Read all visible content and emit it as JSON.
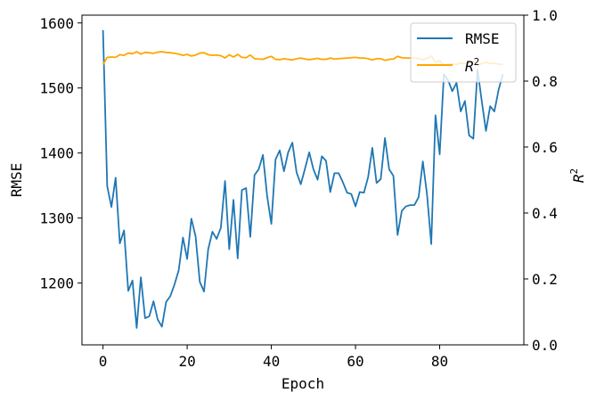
{
  "chart_data": {
    "type": "line",
    "xlabel": "Epoch",
    "ylabel_left": "RMSE",
    "ylabel_right": "R",
    "ylabel_right_sup": "2",
    "xlim": [
      -5,
      100
    ],
    "ylim_left": [
      1105,
      1612
    ],
    "ylim_right": [
      0.0,
      1.0
    ],
    "xticks": [
      "0",
      "20",
      "40",
      "60",
      "80"
    ],
    "xtick_values": [
      0,
      20,
      40,
      60,
      80
    ],
    "yticks_left": [
      "1200",
      "1300",
      "1400",
      "1500",
      "1600"
    ],
    "ytick_values_left": [
      1200,
      1300,
      1400,
      1500,
      1600
    ],
    "yticks_right": [
      "0.0",
      "0.2",
      "0.4",
      "0.6",
      "0.8",
      "1.0"
    ],
    "ytick_values_right": [
      0.0,
      0.2,
      0.4,
      0.6,
      0.8,
      1.0
    ],
    "legend": {
      "position": "top-right",
      "entries": [
        "RMSE",
        "R",
        "2"
      ]
    },
    "series": [
      {
        "name": "RMSE",
        "color": "#1f77b4",
        "axis": "left",
        "x": [
          0,
          1,
          2,
          3,
          4,
          5,
          6,
          7,
          8,
          9,
          10,
          11,
          12,
          13,
          14,
          15,
          16,
          17,
          18,
          19,
          20,
          21,
          22,
          23,
          24,
          25,
          26,
          27,
          28,
          29,
          30,
          31,
          32,
          33,
          34,
          35,
          36,
          37,
          38,
          39,
          40,
          41,
          42,
          43,
          44,
          45,
          46,
          47,
          48,
          49,
          50,
          51,
          52,
          53,
          54,
          55,
          56,
          57,
          58,
          59,
          60,
          61,
          62,
          63,
          64,
          65,
          66,
          67,
          68,
          69,
          70,
          71,
          72,
          73,
          74,
          75,
          76,
          77,
          78,
          79,
          80,
          81,
          82,
          83,
          84,
          85,
          86,
          87,
          88,
          89,
          90,
          91,
          92,
          93,
          94,
          95
        ],
        "values": [
          1589,
          1349,
          1317,
          1362,
          1261,
          1281,
          1188,
          1204,
          1131,
          1209,
          1146,
          1149,
          1172,
          1144,
          1133,
          1171,
          1180,
          1198,
          1220,
          1270,
          1237,
          1299,
          1272,
          1202,
          1187,
          1252,
          1279,
          1268,
          1285,
          1357,
          1252,
          1328,
          1238,
          1343,
          1346,
          1271,
          1366,
          1375,
          1397,
          1334,
          1291,
          1390,
          1404,
          1372,
          1401,
          1416,
          1370,
          1352,
          1376,
          1401,
          1375,
          1359,
          1395,
          1388,
          1340,
          1369,
          1369,
          1355,
          1339,
          1337,
          1318,
          1340,
          1339,
          1363,
          1408,
          1354,
          1360,
          1423,
          1375,
          1365,
          1274,
          1311,
          1318,
          1320,
          1320,
          1332,
          1387,
          1336,
          1260,
          1458,
          1398,
          1521,
          1512,
          1495,
          1508,
          1464,
          1480,
          1427,
          1422,
          1528,
          1480,
          1434,
          1472,
          1464,
          1497,
          1521
        ]
      },
      {
        "name": "R2",
        "color": "#ffa500",
        "axis": "right",
        "x": [
          0,
          1,
          2,
          3,
          4,
          5,
          6,
          7,
          8,
          9,
          10,
          11,
          12,
          13,
          14,
          15,
          16,
          17,
          18,
          19,
          20,
          21,
          22,
          23,
          24,
          25,
          26,
          27,
          28,
          29,
          30,
          31,
          32,
          33,
          34,
          35,
          36,
          37,
          38,
          39,
          40,
          41,
          42,
          43,
          44,
          45,
          46,
          47,
          48,
          49,
          50,
          51,
          52,
          53,
          54,
          55,
          56,
          57,
          58,
          59,
          60,
          61,
          62,
          63,
          64,
          65,
          66,
          67,
          68,
          69,
          70,
          71,
          72,
          73,
          74,
          75,
          76,
          77,
          78,
          79,
          80,
          81,
          82,
          83,
          84,
          85,
          86,
          87,
          88,
          89,
          90,
          91,
          92,
          93,
          94,
          95
        ],
        "values": [
          0.85,
          0.872,
          0.873,
          0.872,
          0.88,
          0.878,
          0.885,
          0.883,
          0.889,
          0.882,
          0.887,
          0.886,
          0.884,
          0.888,
          0.889,
          0.887,
          0.886,
          0.884,
          0.882,
          0.878,
          0.881,
          0.876,
          0.879,
          0.885,
          0.886,
          0.88,
          0.878,
          0.879,
          0.877,
          0.87,
          0.88,
          0.873,
          0.881,
          0.872,
          0.871,
          0.879,
          0.868,
          0.867,
          0.866,
          0.871,
          0.875,
          0.866,
          0.865,
          0.868,
          0.866,
          0.864,
          0.868,
          0.87,
          0.867,
          0.865,
          0.867,
          0.869,
          0.866,
          0.866,
          0.87,
          0.867,
          0.868,
          0.869,
          0.87,
          0.871,
          0.872,
          0.87,
          0.87,
          0.868,
          0.864,
          0.868,
          0.868,
          0.863,
          0.866,
          0.867,
          0.875,
          0.871,
          0.87,
          0.87,
          0.87,
          0.869,
          0.865,
          0.869,
          0.876,
          0.857,
          0.862,
          0.847,
          0.85,
          0.852,
          0.85,
          0.855,
          0.853,
          0.858,
          0.86,
          0.848,
          0.853,
          0.857,
          0.853,
          0.854,
          0.851,
          0.85
        ]
      }
    ]
  }
}
